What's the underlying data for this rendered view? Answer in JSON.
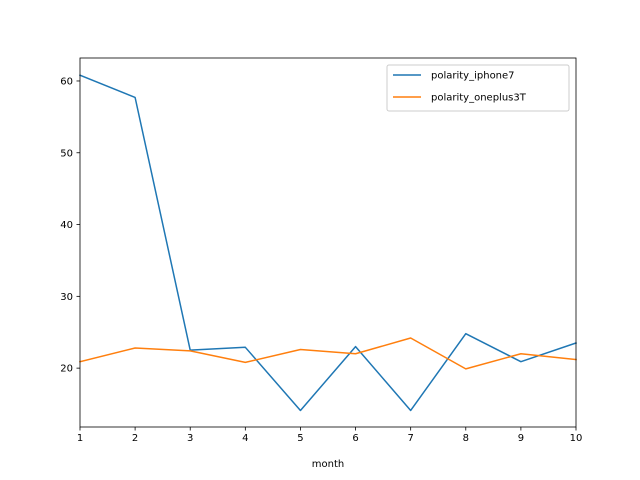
{
  "chart_data": {
    "type": "line",
    "title": "",
    "xlabel": "month",
    "ylabel": "",
    "x": [
      1,
      2,
      3,
      4,
      5,
      6,
      7,
      8,
      9,
      10
    ],
    "xlim": [
      1,
      10
    ],
    "ylim": [
      11.8,
      63.2
    ],
    "xticks": [
      "1",
      "2",
      "3",
      "4",
      "5",
      "6",
      "7",
      "8",
      "9",
      "10"
    ],
    "yticks": [
      "20",
      "30",
      "40",
      "50",
      "60"
    ],
    "grid": false,
    "legend_position": "top-right",
    "series": [
      {
        "name": "polarity_iphone7",
        "color": "#1f77b4",
        "values": [
          60.8,
          57.7,
          22.5,
          22.9,
          14.1,
          23.0,
          14.1,
          24.8,
          20.9,
          23.5
        ]
      },
      {
        "name": "polarity_oneplus3T",
        "color": "#ff7f0e",
        "values": [
          20.9,
          22.8,
          22.4,
          20.8,
          22.6,
          22.0,
          24.2,
          19.9,
          22.0,
          21.2
        ]
      }
    ]
  }
}
